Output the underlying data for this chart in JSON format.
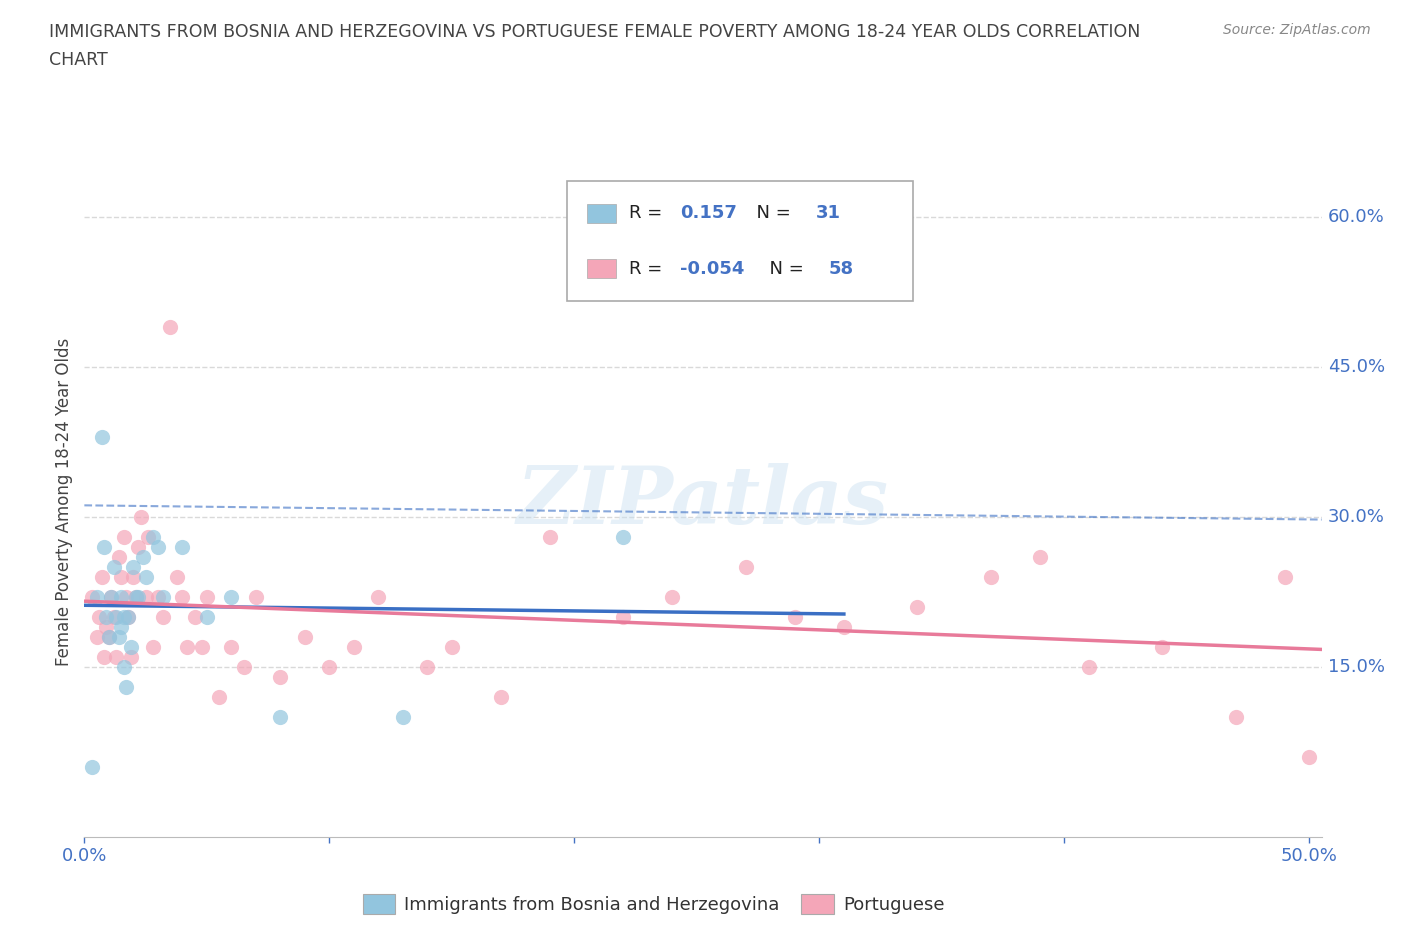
{
  "title_line1": "IMMIGRANTS FROM BOSNIA AND HERZEGOVINA VS PORTUGUESE FEMALE POVERTY AMONG 18-24 YEAR OLDS CORRELATION",
  "title_line2": "CHART",
  "source_text": "Source: ZipAtlas.com",
  "ylabel": "Female Poverty Among 18-24 Year Olds",
  "xlim": [
    0.0,
    0.505
  ],
  "ylim": [
    -0.02,
    0.65
  ],
  "xtick_positions": [
    0.0,
    0.1,
    0.2,
    0.3,
    0.4,
    0.5
  ],
  "xticklabels": [
    "0.0%",
    "",
    "",
    "",
    "",
    "50.0%"
  ],
  "ytick_positions": [
    0.15,
    0.3,
    0.45,
    0.6
  ],
  "ytick_labels": [
    "15.0%",
    "30.0%",
    "45.0%",
    "60.0%"
  ],
  "legend_R1": "0.157",
  "legend_N1": "31",
  "legend_R2": "-0.054",
  "legend_N2": "58",
  "color_blue": "#92c5de",
  "color_pink": "#f4a6b8",
  "color_blue_line": "#3a6fc4",
  "color_pink_line": "#e87a9a",
  "watermark": "ZIPatlas",
  "grid_color": "#d0d0d0",
  "title_color": "#444444",
  "axis_label_color": "#444444",
  "tick_label_color": "#4472c4",
  "bosnia_x": [
    0.003,
    0.005,
    0.007,
    0.008,
    0.009,
    0.01,
    0.011,
    0.012,
    0.013,
    0.014,
    0.015,
    0.015,
    0.016,
    0.016,
    0.017,
    0.018,
    0.019,
    0.02,
    0.021,
    0.022,
    0.024,
    0.025,
    0.028,
    0.03,
    0.032,
    0.04,
    0.05,
    0.06,
    0.08,
    0.13,
    0.22
  ],
  "bosnia_y": [
    0.05,
    0.22,
    0.38,
    0.27,
    0.2,
    0.18,
    0.22,
    0.25,
    0.2,
    0.18,
    0.22,
    0.19,
    0.15,
    0.2,
    0.13,
    0.2,
    0.17,
    0.25,
    0.22,
    0.22,
    0.26,
    0.24,
    0.28,
    0.27,
    0.22,
    0.27,
    0.2,
    0.22,
    0.1,
    0.1,
    0.28
  ],
  "portuguese_x": [
    0.003,
    0.005,
    0.006,
    0.007,
    0.008,
    0.009,
    0.01,
    0.011,
    0.012,
    0.013,
    0.014,
    0.015,
    0.016,
    0.017,
    0.018,
    0.019,
    0.02,
    0.021,
    0.022,
    0.023,
    0.025,
    0.026,
    0.028,
    0.03,
    0.032,
    0.035,
    0.038,
    0.04,
    0.042,
    0.045,
    0.048,
    0.05,
    0.055,
    0.06,
    0.065,
    0.07,
    0.08,
    0.09,
    0.1,
    0.11,
    0.12,
    0.14,
    0.15,
    0.17,
    0.19,
    0.22,
    0.24,
    0.27,
    0.29,
    0.31,
    0.34,
    0.37,
    0.39,
    0.41,
    0.44,
    0.47,
    0.49,
    0.5
  ],
  "portuguese_y": [
    0.22,
    0.18,
    0.2,
    0.24,
    0.16,
    0.19,
    0.18,
    0.22,
    0.2,
    0.16,
    0.26,
    0.24,
    0.28,
    0.22,
    0.2,
    0.16,
    0.24,
    0.22,
    0.27,
    0.3,
    0.22,
    0.28,
    0.17,
    0.22,
    0.2,
    0.49,
    0.24,
    0.22,
    0.17,
    0.2,
    0.17,
    0.22,
    0.12,
    0.17,
    0.15,
    0.22,
    0.14,
    0.18,
    0.15,
    0.17,
    0.22,
    0.15,
    0.17,
    0.12,
    0.28,
    0.2,
    0.22,
    0.25,
    0.2,
    0.19,
    0.21,
    0.24,
    0.26,
    0.15,
    0.17,
    0.1,
    0.24,
    0.06
  ]
}
